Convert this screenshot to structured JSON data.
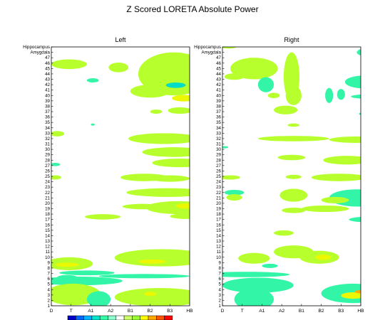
{
  "chart_data": {
    "type": "heatmap",
    "title": "Z Scored LORETA Absolute Power",
    "x_categories": [
      "D",
      "T",
      "A1",
      "A2",
      "B1",
      "B2",
      "B3",
      "HB"
    ],
    "y_categories": [
      "1",
      "2",
      "3",
      "4",
      "5",
      "6",
      "7",
      "8",
      "9",
      "10",
      "11",
      "12",
      "13",
      "14",
      "15",
      "16",
      "17",
      "18",
      "19",
      "20",
      "21",
      "22",
      "23",
      "24",
      "25",
      "26",
      "27",
      "28",
      "29",
      "30",
      "31",
      "32",
      "33",
      "34",
      "35",
      "36",
      "37",
      "38",
      "39",
      "40",
      "41",
      "42",
      "43",
      "44",
      "45",
      "46",
      "47",
      "Amygdala",
      "Hippocampus"
    ],
    "color_scale": [
      "#0000cc",
      "#0066ff",
      "#00b3ff",
      "#00e6cc",
      "#33ffaa",
      "#88ffcc",
      "#ffffff",
      "#ccff66",
      "#99ff33",
      "#ffff00",
      "#ffaa00",
      "#ff5500",
      "#ff0000"
    ],
    "panels": [
      {
        "name": "Left",
        "blobs": [
          {
            "x": 0.9,
            "y": 45.8,
            "rx": 0.9,
            "ry": 0.9,
            "level": 1
          },
          {
            "x": 3.4,
            "y": 45.2,
            "rx": 0.5,
            "ry": 0.9,
            "level": 1
          },
          {
            "x": 6.2,
            "y": 44.0,
            "rx": 1.8,
            "ry": 4.0,
            "level": 1
          },
          {
            "x": 5.0,
            "y": 40.8,
            "rx": 1.0,
            "ry": 1.2,
            "level": 1
          },
          {
            "x": 6.3,
            "y": 41.9,
            "rx": 0.5,
            "ry": 0.5,
            "level": 0
          },
          {
            "x": 6.7,
            "y": 39.5,
            "rx": 0.6,
            "ry": 0.6,
            "level": 2
          },
          {
            "x": 5.3,
            "y": 37.0,
            "rx": 0.3,
            "ry": 0.4,
            "level": 1
          },
          {
            "x": 6.5,
            "y": 37.2,
            "rx": 0.6,
            "ry": 0.6,
            "level": 1
          },
          {
            "x": 2.1,
            "y": 42.8,
            "rx": 0.3,
            "ry": 0.4,
            "level": -1
          },
          {
            "x": 2.1,
            "y": 34.6,
            "rx": 0.1,
            "ry": 0.2,
            "level": -1
          },
          {
            "x": 0.3,
            "y": 32.9,
            "rx": 0.35,
            "ry": 0.5,
            "level": 1
          },
          {
            "x": 5.7,
            "y": 32.0,
            "rx": 1.8,
            "ry": 1.0,
            "level": 1
          },
          {
            "x": 6.2,
            "y": 29.5,
            "rx": 1.6,
            "ry": 0.9,
            "level": 1
          },
          {
            "x": 6.5,
            "y": 27.5,
            "rx": 1.4,
            "ry": 0.8,
            "level": 1
          },
          {
            "x": 0.2,
            "y": 27.2,
            "rx": 0.25,
            "ry": 0.3,
            "level": -1
          },
          {
            "x": 0.2,
            "y": 24.8,
            "rx": 0.3,
            "ry": 0.4,
            "level": 1
          },
          {
            "x": 4.7,
            "y": 24.8,
            "rx": 1.2,
            "ry": 0.7,
            "level": 1
          },
          {
            "x": 6.0,
            "y": 24.6,
            "rx": 1.0,
            "ry": 0.6,
            "level": 1
          },
          {
            "x": 5.9,
            "y": 22.0,
            "rx": 2.1,
            "ry": 0.8,
            "level": 1
          },
          {
            "x": 6.4,
            "y": 19.2,
            "rx": 1.6,
            "ry": 1.2,
            "level": 1
          },
          {
            "x": 4.6,
            "y": 19.4,
            "rx": 1.0,
            "ry": 0.5,
            "level": 1
          },
          {
            "x": 6.9,
            "y": 19.5,
            "rx": 0.6,
            "ry": 0.5,
            "level": 2
          },
          {
            "x": 2.6,
            "y": 17.5,
            "rx": 0.9,
            "ry": 0.5,
            "level": 1
          },
          {
            "x": 6.8,
            "y": 17.6,
            "rx": 0.8,
            "ry": 0.5,
            "level": 1
          },
          {
            "x": 5.6,
            "y": 9.9,
            "rx": 2.4,
            "ry": 1.6,
            "level": 1
          },
          {
            "x": 5.1,
            "y": 9.2,
            "rx": 0.7,
            "ry": 0.4,
            "level": 2
          },
          {
            "x": 0.9,
            "y": 8.8,
            "rx": 1.2,
            "ry": 1.2,
            "level": 1
          },
          {
            "x": 0.8,
            "y": 8.6,
            "rx": 0.6,
            "ry": 0.4,
            "level": 2
          },
          {
            "x": 1.8,
            "y": 7.1,
            "rx": 1.4,
            "ry": 0.45,
            "level": -1
          },
          {
            "x": 4.7,
            "y": 6.5,
            "rx": 2.3,
            "ry": 0.4,
            "level": -1
          },
          {
            "x": 0.8,
            "y": 6.3,
            "rx": 0.5,
            "ry": 0.4,
            "level": -1
          },
          {
            "x": 1.4,
            "y": 5.6,
            "rx": 2.2,
            "ry": 0.8,
            "level": -1
          },
          {
            "x": 1.1,
            "y": 3.1,
            "rx": 1.4,
            "ry": 2.0,
            "level": 1
          },
          {
            "x": 2.4,
            "y": 2.2,
            "rx": 0.6,
            "ry": 1.5,
            "level": -1
          },
          {
            "x": 5.5,
            "y": 2.6,
            "rx": 2.3,
            "ry": 1.7,
            "level": 1
          },
          {
            "x": 5.0,
            "y": 3.2,
            "rx": 0.3,
            "ry": 0.4,
            "level": 2
          }
        ]
      },
      {
        "name": "Right",
        "blobs": [
          {
            "x": 0.3,
            "y": 49.0,
            "rx": 0.4,
            "ry": 0.3,
            "level": 1
          },
          {
            "x": 1.6,
            "y": 45.0,
            "rx": 1.2,
            "ry": 2.0,
            "level": 1
          },
          {
            "x": 0.6,
            "y": 43.5,
            "rx": 0.5,
            "ry": 0.6,
            "level": 1
          },
          {
            "x": 3.5,
            "y": 43.5,
            "rx": 0.4,
            "ry": 4.5,
            "level": 1
          },
          {
            "x": 7.4,
            "y": 48.0,
            "rx": 0.6,
            "ry": 0.8,
            "level": -1
          },
          {
            "x": 7.5,
            "y": 45.0,
            "rx": 0.5,
            "ry": 0.6,
            "level": -1
          },
          {
            "x": 7.2,
            "y": 42.5,
            "rx": 1.0,
            "ry": 1.2,
            "level": -1
          },
          {
            "x": 2.2,
            "y": 42.0,
            "rx": 0.4,
            "ry": 1.4,
            "level": -1
          },
          {
            "x": 2.6,
            "y": 40.0,
            "rx": 0.3,
            "ry": 0.5,
            "level": 1
          },
          {
            "x": 3.6,
            "y": 40.0,
            "rx": 0.4,
            "ry": 1.8,
            "level": 1
          },
          {
            "x": 5.4,
            "y": 40.0,
            "rx": 0.2,
            "ry": 1.4,
            "level": -1
          },
          {
            "x": 6.0,
            "y": 40.2,
            "rx": 0.2,
            "ry": 1.0,
            "level": -1
          },
          {
            "x": 7.3,
            "y": 39.8,
            "rx": 0.8,
            "ry": 0.4,
            "level": -1
          },
          {
            "x": 7.5,
            "y": 36.6,
            "rx": 0.6,
            "ry": 0.4,
            "level": -1
          },
          {
            "x": 7.5,
            "y": 34.3,
            "rx": 0.5,
            "ry": 0.4,
            "level": -1
          },
          {
            "x": 3.6,
            "y": 34.5,
            "rx": 0.3,
            "ry": 0.3,
            "level": 1
          },
          {
            "x": 3.2,
            "y": 37.3,
            "rx": 0.6,
            "ry": 0.8,
            "level": 1
          },
          {
            "x": 3.6,
            "y": 32.0,
            "rx": 1.8,
            "ry": 0.5,
            "level": 1
          },
          {
            "x": 6.8,
            "y": 31.8,
            "rx": 1.4,
            "ry": 0.6,
            "level": 1
          },
          {
            "x": 7.6,
            "y": 29.8,
            "rx": 0.5,
            "ry": 0.6,
            "level": -1
          },
          {
            "x": 0.1,
            "y": 30.4,
            "rx": 0.2,
            "ry": 0.2,
            "level": -1
          },
          {
            "x": 3.5,
            "y": 28.5,
            "rx": 0.7,
            "ry": 0.5,
            "level": 1
          },
          {
            "x": 6.3,
            "y": 28.0,
            "rx": 1.2,
            "ry": 0.8,
            "level": 1
          },
          {
            "x": 3.6,
            "y": 24.9,
            "rx": 0.4,
            "ry": 0.4,
            "level": 1
          },
          {
            "x": 5.9,
            "y": 24.8,
            "rx": 1.4,
            "ry": 0.7,
            "level": 1
          },
          {
            "x": 0.4,
            "y": 24.8,
            "rx": 0.5,
            "ry": 0.4,
            "level": 1
          },
          {
            "x": 0.6,
            "y": 22.0,
            "rx": 0.5,
            "ry": 0.5,
            "level": -1
          },
          {
            "x": 0.6,
            "y": 21.1,
            "rx": 0.4,
            "ry": 0.6,
            "level": 1
          },
          {
            "x": 3.6,
            "y": 21.5,
            "rx": 0.7,
            "ry": 1.2,
            "level": 1
          },
          {
            "x": 6.8,
            "y": 21.0,
            "rx": 1.4,
            "ry": 1.6,
            "level": -1
          },
          {
            "x": 5.7,
            "y": 20.6,
            "rx": 0.7,
            "ry": 0.6,
            "level": 1
          },
          {
            "x": 3.6,
            "y": 18.7,
            "rx": 0.6,
            "ry": 0.5,
            "level": 1
          },
          {
            "x": 5.2,
            "y": 19.0,
            "rx": 1.2,
            "ry": 0.6,
            "level": 1
          },
          {
            "x": 7.3,
            "y": 17.0,
            "rx": 0.9,
            "ry": 0.5,
            "level": -1
          },
          {
            "x": 3.1,
            "y": 14.5,
            "rx": 0.5,
            "ry": 0.5,
            "level": 1
          },
          {
            "x": 3.6,
            "y": 11.0,
            "rx": 1.0,
            "ry": 1.2,
            "level": 1
          },
          {
            "x": 4.9,
            "y": 10.0,
            "rx": 1.0,
            "ry": 1.2,
            "level": 1
          },
          {
            "x": 5.1,
            "y": 10.0,
            "rx": 0.4,
            "ry": 0.5,
            "level": 2
          },
          {
            "x": 1.6,
            "y": 9.8,
            "rx": 0.8,
            "ry": 1.0,
            "level": 1
          },
          {
            "x": 2.4,
            "y": 8.4,
            "rx": 0.4,
            "ry": 0.4,
            "level": -1
          },
          {
            "x": 1.2,
            "y": 6.8,
            "rx": 2.2,
            "ry": 0.5,
            "level": -1
          },
          {
            "x": 1.8,
            "y": 4.8,
            "rx": 1.8,
            "ry": 1.4,
            "level": -1
          },
          {
            "x": 1.6,
            "y": 2.2,
            "rx": 1.0,
            "ry": 2.0,
            "level": -1
          },
          {
            "x": 6.6,
            "y": 3.3,
            "rx": 1.6,
            "ry": 1.8,
            "level": -1
          },
          {
            "x": 6.6,
            "y": 2.9,
            "rx": 0.6,
            "ry": 0.6,
            "level": 2
          },
          {
            "x": 7.0,
            "y": 3.6,
            "rx": 0.3,
            "ry": 0.3,
            "level": 4
          },
          {
            "x": 7.9,
            "y": 4.0,
            "rx": 0.3,
            "ry": 0.5,
            "level": -1
          }
        ]
      }
    ]
  }
}
